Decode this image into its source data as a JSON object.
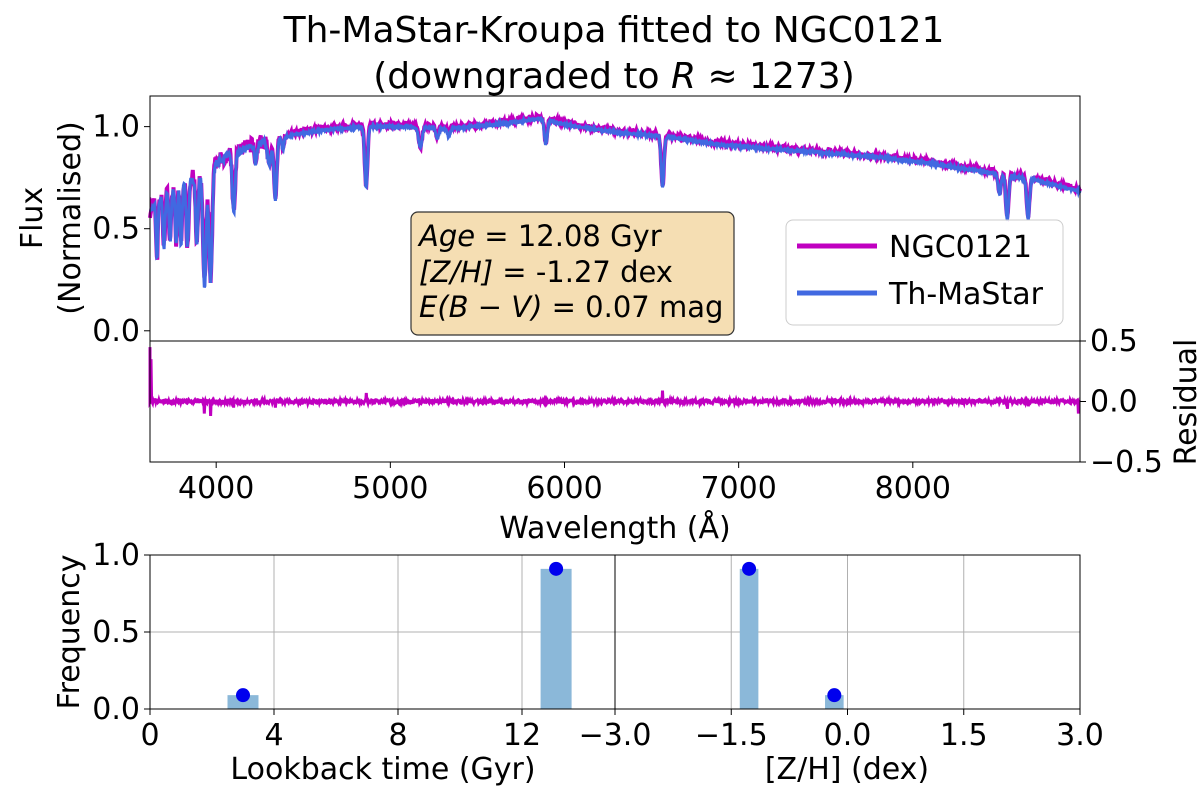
{
  "figure": {
    "title_line1": "Th-MaStar-Kroupa fitted to NGC0121",
    "title_line2_prefix": "(downgraded to ",
    "title_line2_var": "R",
    "title_line2_suffix": " ≈ 1273)"
  },
  "colors": {
    "observed": "#c000c0",
    "model": "#4169e1",
    "residual": "#c000c0",
    "hist_bar": "#8bb8d9",
    "hist_dot": "#0000ee",
    "box_fill": "#f5deb3",
    "grid": "#b0b0b0"
  },
  "chart_data": [
    {
      "type": "line",
      "panel": "spectrum",
      "ylabel_line1": "Flux",
      "ylabel_line2": "(Normalised)",
      "xlim": [
        3620,
        8960
      ],
      "ylim": [
        -0.05,
        1.15
      ],
      "yticks": [
        0.0,
        0.5,
        1.0
      ],
      "ytick_labels": [
        "0.0",
        "0.5",
        "1.0"
      ],
      "legend_position": "center-right",
      "series": [
        {
          "name": "NGC0121",
          "key": "observed"
        },
        {
          "name": "Th-MaStar",
          "key": "model"
        }
      ],
      "continuum": {
        "x": [
          3620,
          3650,
          3700,
          3800,
          3900,
          3950,
          4000,
          4100,
          4300,
          4500,
          4700,
          4900,
          5100,
          5300,
          5500,
          5700,
          5850,
          6000,
          6300,
          6600,
          6900,
          7200,
          7500,
          7800,
          8100,
          8400,
          8700,
          8960
        ],
        "y": [
          0.58,
          0.62,
          0.66,
          0.72,
          0.76,
          0.78,
          0.82,
          0.87,
          0.93,
          0.97,
          0.99,
          1.0,
          1.0,
          0.99,
          1.0,
          1.02,
          1.04,
          1.01,
          0.97,
          0.95,
          0.91,
          0.89,
          0.87,
          0.85,
          0.82,
          0.78,
          0.74,
          0.68
        ]
      },
      "absorption_lines": [
        {
          "x": 3660,
          "depth": 0.28,
          "width": 5
        },
        {
          "x": 3700,
          "depth": 0.25,
          "width": 6
        },
        {
          "x": 3735,
          "depth": 0.24,
          "width": 6
        },
        {
          "x": 3770,
          "depth": 0.28,
          "width": 6
        },
        {
          "x": 3798,
          "depth": 0.3,
          "width": 6
        },
        {
          "x": 3835,
          "depth": 0.32,
          "width": 7
        },
        {
          "x": 3889,
          "depth": 0.34,
          "width": 7
        },
        {
          "x": 3933,
          "depth": 0.55,
          "width": 9
        },
        {
          "x": 3968,
          "depth": 0.55,
          "width": 9
        },
        {
          "x": 4101,
          "depth": 0.3,
          "width": 8
        },
        {
          "x": 4227,
          "depth": 0.1,
          "width": 6
        },
        {
          "x": 4305,
          "depth": 0.12,
          "width": 10
        },
        {
          "x": 4340,
          "depth": 0.3,
          "width": 8
        },
        {
          "x": 4383,
          "depth": 0.06,
          "width": 6
        },
        {
          "x": 4861,
          "depth": 0.3,
          "width": 8
        },
        {
          "x": 5172,
          "depth": 0.1,
          "width": 10
        },
        {
          "x": 5270,
          "depth": 0.05,
          "width": 8
        },
        {
          "x": 5335,
          "depth": 0.04,
          "width": 8
        },
        {
          "x": 5893,
          "depth": 0.12,
          "width": 8
        },
        {
          "x": 6563,
          "depth": 0.25,
          "width": 8
        },
        {
          "x": 8498,
          "depth": 0.1,
          "width": 8
        },
        {
          "x": 8542,
          "depth": 0.22,
          "width": 8
        },
        {
          "x": 8662,
          "depth": 0.2,
          "width": 8
        }
      ]
    },
    {
      "type": "line",
      "panel": "residual",
      "ylabel": "Residual",
      "xlabel": "Wavelength (Å)",
      "xlim": [
        3620,
        8960
      ],
      "ylim": [
        -0.5,
        0.5
      ],
      "xticks": [
        4000,
        5000,
        6000,
        7000,
        8000
      ],
      "xtick_labels": [
        "4000",
        "5000",
        "6000",
        "7000",
        "8000"
      ],
      "yticks": [
        0.5,
        0.0,
        -0.5
      ],
      "ytick_labels": [
        "0.5",
        "0.0",
        "−0.5"
      ],
      "spikes": [
        {
          "x": 3625,
          "y": 0.35
        },
        {
          "x": 3933,
          "y": -0.1
        },
        {
          "x": 3968,
          "y": -0.12
        },
        {
          "x": 4101,
          "y": -0.05
        },
        {
          "x": 4340,
          "y": -0.05
        },
        {
          "x": 4861,
          "y": 0.07
        },
        {
          "x": 6563,
          "y": 0.09
        },
        {
          "x": 8542,
          "y": -0.06
        },
        {
          "x": 8662,
          "y": -0.04
        },
        {
          "x": 8950,
          "y": -0.1
        }
      ]
    },
    {
      "type": "bar",
      "panel": "age_histogram",
      "ylabel": "Frequency",
      "xlabel": "Lookback time (Gyr)",
      "xlim": [
        0,
        15
      ],
      "ylim": [
        0,
        1.0
      ],
      "xticks": [
        0,
        4,
        8,
        12
      ],
      "xtick_labels": [
        "0",
        "4",
        "8",
        "12"
      ],
      "yticks": [
        0.0,
        0.5,
        1.0
      ],
      "ytick_labels": [
        "0.0",
        "0.5",
        "1.0"
      ],
      "grid": true,
      "bars": [
        {
          "x": 3.0,
          "width": 1.0,
          "value": 0.09
        },
        {
          "x": 13.1,
          "width": 1.0,
          "value": 0.91
        }
      ],
      "points": [
        {
          "x": 3.0,
          "y": 0.09
        },
        {
          "x": 13.1,
          "y": 0.91
        }
      ]
    },
    {
      "type": "bar",
      "panel": "metallicity_histogram",
      "xlabel": "[Z/H] (dex)",
      "xlim": [
        -3.0,
        3.0
      ],
      "ylim": [
        0,
        1.0
      ],
      "xticks": [
        -3.0,
        -1.5,
        0.0,
        1.5,
        3.0
      ],
      "xtick_labels": [
        "−3.0",
        "−1.5",
        "0.0",
        "1.5",
        "3.0"
      ],
      "grid": true,
      "bars": [
        {
          "x": -1.27,
          "width": 0.24,
          "value": 0.91
        },
        {
          "x": -0.17,
          "width": 0.24,
          "value": 0.09
        }
      ],
      "points": [
        {
          "x": -1.27,
          "y": 0.91
        },
        {
          "x": -0.17,
          "y": 0.09
        }
      ]
    }
  ],
  "info_box": {
    "age_var": "Age",
    "age_val": " = 12.08 Gyr",
    "zh_var": "[Z/H]",
    "zh_val": " = -1.27 dex",
    "ebv_var": "E(B − V)",
    "ebv_val": " = 0.07 mag"
  }
}
